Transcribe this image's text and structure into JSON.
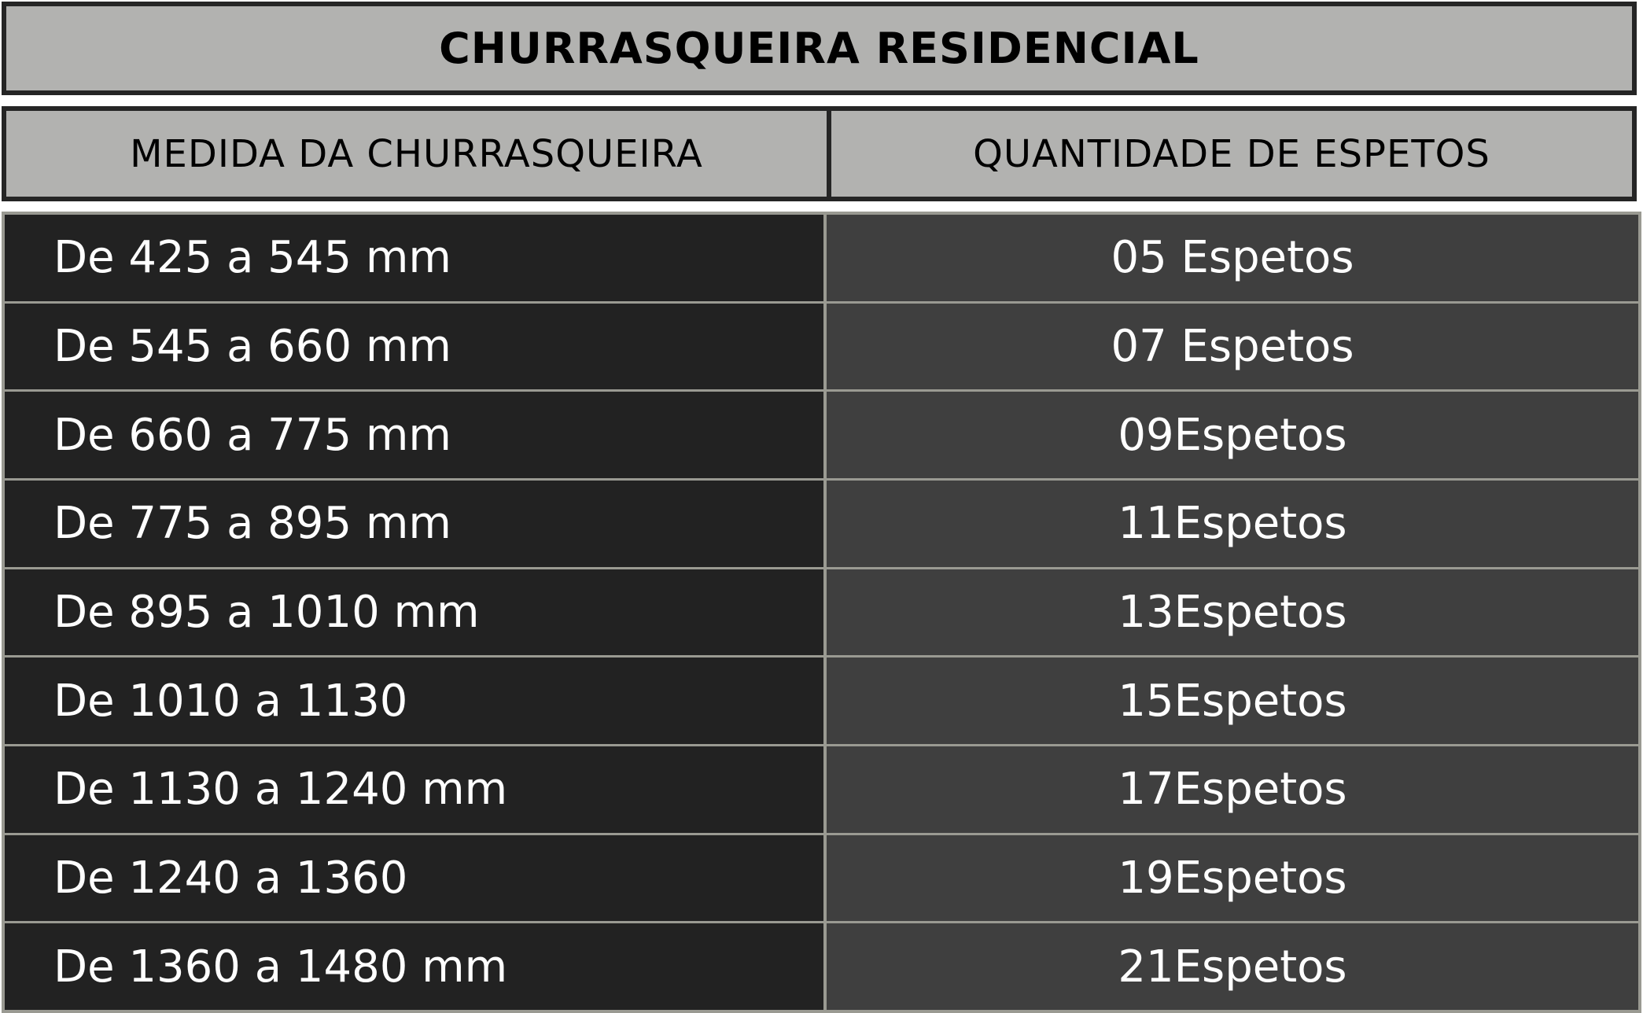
{
  "title": "CHURRASQUEIRA RESIDENCIAL",
  "headers": [
    "MEDIDA DA CHURRASQUEIRA",
    "QUANTIDADE DE ESPETOS"
  ],
  "rows": [
    [
      "De 425 a 545 mm",
      "05 Espetos"
    ],
    [
      "De 545 a 660 mm",
      "07 Espetos"
    ],
    [
      "De 660 a 775 mm",
      "09Espetos"
    ],
    [
      "De 775 a 895 mm",
      "11Espetos"
    ],
    [
      "De 895 a 1010 mm",
      "13Espetos"
    ],
    [
      "De 1010 a 1130",
      "15Espetos"
    ],
    [
      "De 1130 a 1240 mm",
      "17Espetos"
    ],
    [
      "De 1240 a 1360",
      "19Espetos"
    ],
    [
      "De 1360 a 1480 mm",
      "21Espetos"
    ]
  ]
}
